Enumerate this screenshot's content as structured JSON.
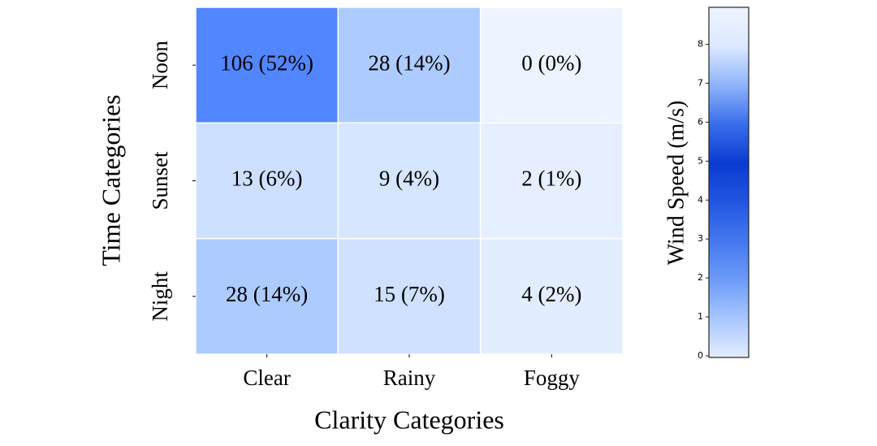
{
  "chart_data": {
    "type": "heatmap",
    "x_label": "Clarity Categories",
    "y_label": "Time Categories",
    "x_categories": [
      "Clear",
      "Rainy",
      "Foggy"
    ],
    "y_categories": [
      "Noon",
      "Sunset",
      "Night"
    ],
    "values": [
      [
        106,
        28,
        0
      ],
      [
        13,
        9,
        2
      ],
      [
        28,
        15,
        4
      ]
    ],
    "value_labels": [
      [
        "106 (52%)",
        "28 (14%)",
        "0 (0%)"
      ],
      [
        "13 (6%)",
        "9 (4%)",
        "2 (1%)"
      ],
      [
        "28 (14%)",
        "15 (7%)",
        "4 (2%)"
      ]
    ],
    "cell_colors": [
      [
        "#5286ff",
        "#adcbff",
        "#edf3ff"
      ],
      [
        "#cde0ff",
        "#d6e6ff",
        "#e6efff"
      ],
      [
        "#adcbff",
        "#cfe1ff",
        "#e2edff"
      ]
    ],
    "colorbar": {
      "label": "Wind Speed (m/s)",
      "zlim": [
        0,
        8.95
      ],
      "ticks": [
        0,
        1,
        2,
        3,
        4,
        5,
        6,
        7,
        8
      ],
      "colors": [
        "#e3edff",
        "#a8c6ff",
        "#6d9bf8",
        "#4477ef",
        "#2256e0",
        "#0a3bd0",
        "#3a6eec",
        "#8fb4fa",
        "#dbe8ff",
        "#eef4ff"
      ]
    }
  }
}
